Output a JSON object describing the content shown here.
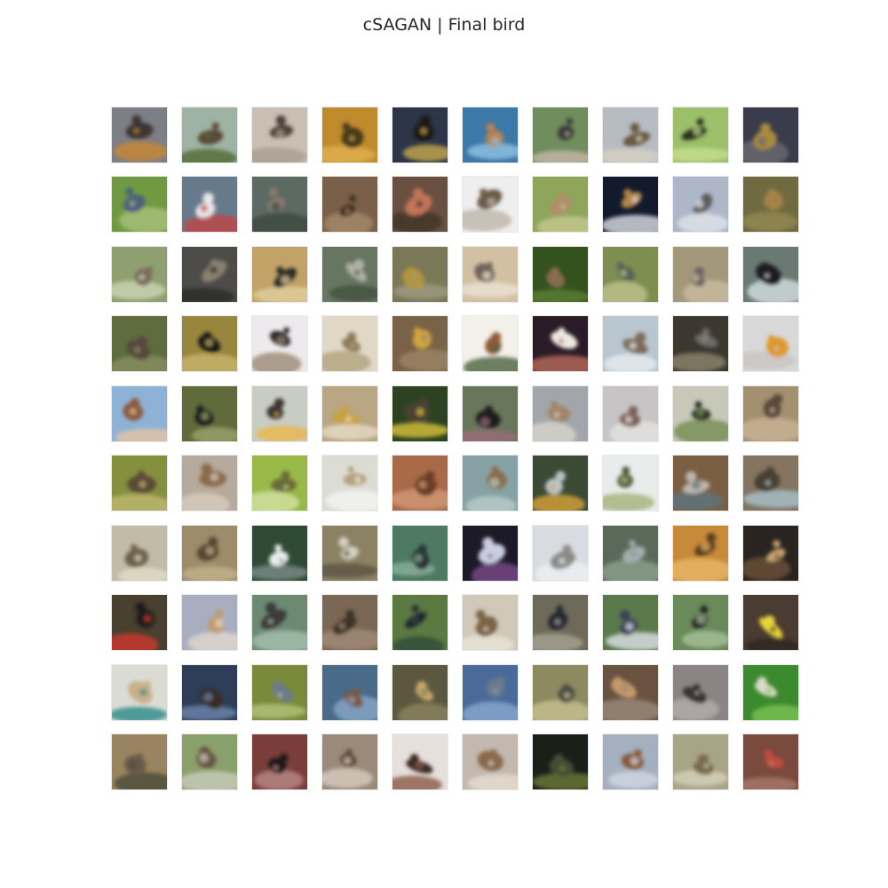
{
  "figure": {
    "title": "cSAGAN | Final bird"
  },
  "grid": {
    "rows": 10,
    "cols": 10,
    "tile_content": "bird-sample",
    "palettes": [
      {
        "bg": "#7d7f86",
        "fg": "#3c3430",
        "accent": "#c9872f"
      },
      {
        "bg": "#9fb3a4",
        "fg": "#5a4a38",
        "accent": "#4f6b35"
      },
      {
        "bg": "#c9bfb2",
        "fg": "#4e423a",
        "accent": "#a89d8e"
      },
      {
        "bg": "#c08b2c",
        "fg": "#4a3a1c",
        "accent": "#e0b250"
      },
      {
        "bg": "#2c3648",
        "fg": "#1a1816",
        "accent": "#c7a84a"
      },
      {
        "bg": "#3c78a8",
        "fg": "#b9824c",
        "accent": "#8fc3e2"
      },
      {
        "bg": "#6f8d5d",
        "fg": "#3a3a3a",
        "accent": "#c7b8a7"
      },
      {
        "bg": "#b7bcc3",
        "fg": "#6a5a40",
        "accent": "#d8d2c2"
      },
      {
        "bg": "#9cbf6a",
        "fg": "#2e3320",
        "accent": "#c5df8e"
      },
      {
        "bg": "#3a3c4c",
        "fg": "#a98a3c",
        "accent": "#6c6a70"
      },
      {
        "bg": "#6f9a42",
        "fg": "#4d6080",
        "accent": "#a7c07a"
      },
      {
        "bg": "#667a8c",
        "fg": "#e8e6e6",
        "accent": "#c24545"
      },
      {
        "bg": "#5b6a62",
        "fg": "#8a7a70",
        "accent": "#3b4840"
      },
      {
        "bg": "#7a6048",
        "fg": "#3d2f22",
        "accent": "#a58a6c"
      },
      {
        "bg": "#6a5040",
        "fg": "#c27458",
        "accent": "#3e3226"
      },
      {
        "bg": "#eeeeee",
        "fg": "#6c5a48",
        "accent": "#bdb5aa"
      },
      {
        "bg": "#8ea55a",
        "fg": "#b08f6a",
        "accent": "#c5c790"
      },
      {
        "bg": "#121a2c",
        "fg": "#b08446",
        "accent": "#dddfe6"
      },
      {
        "bg": "#adb7c8",
        "fg": "#5e5c5c",
        "accent": "#e0e4ea"
      },
      {
        "bg": "#6f6a40",
        "fg": "#a5824a",
        "accent": "#938a52"
      },
      {
        "bg": "#8ea070",
        "fg": "#7a6a5a",
        "accent": "#cbd6b4"
      },
      {
        "bg": "#4d4c48",
        "fg": "#8a8270",
        "accent": "#2c2a26"
      },
      {
        "bg": "#c2a266",
        "fg": "#2c2a26",
        "accent": "#e0cf9e"
      },
      {
        "bg": "#667660",
        "fg": "#b0b0a6",
        "accent": "#425240"
      },
      {
        "bg": "#7a7856",
        "fg": "#b3953c",
        "accent": "#9c9a80"
      },
      {
        "bg": "#d2c0a2",
        "fg": "#6e6258",
        "accent": "#ece4d6"
      },
      {
        "bg": "#33521e",
        "fg": "#8a6a52",
        "accent": "#5c7e32"
      },
      {
        "bg": "#7e8e50",
        "fg": "#5a6058",
        "accent": "#bec28e"
      },
      {
        "bg": "#a4987a",
        "fg": "#6a6462",
        "accent": "#c8bca0"
      },
      {
        "bg": "#6a7a72",
        "fg": "#1c1e22",
        "accent": "#d6e0e2"
      },
      {
        "bg": "#5e6c3e",
        "fg": "#56483c",
        "accent": "#8a8e62"
      },
      {
        "bg": "#98863e",
        "fg": "#121212",
        "accent": "#c8b46a"
      },
      {
        "bg": "#eceaec",
        "fg": "#2c2a2a",
        "accent": "#9c8a76"
      },
      {
        "bg": "#e2d8c8",
        "fg": "#8c7a54",
        "accent": "#b0a47c"
      },
      {
        "bg": "#7a6248",
        "fg": "#d2a63e",
        "accent": "#9c8466"
      },
      {
        "bg": "#f4f0ea",
        "fg": "#8e5a3a",
        "accent": "#4e6240"
      },
      {
        "bg": "#2a1c26",
        "fg": "#ece8e2",
        "accent": "#b86a5a"
      },
      {
        "bg": "#b8c6d0",
        "fg": "#7c6a5a",
        "accent": "#e6ecf0"
      },
      {
        "bg": "#3c3830",
        "fg": "#686a6a",
        "accent": "#8c846c"
      },
      {
        "bg": "#d8d8d8",
        "fg": "#e0962c",
        "accent": "#c8c4c0"
      },
      {
        "bg": "#8eb2d6",
        "fg": "#8c5a3a",
        "accent": "#e6c4a4"
      },
      {
        "bg": "#606a3a",
        "fg": "#1a1c20",
        "accent": "#9ea36a"
      },
      {
        "bg": "#c8ccc2",
        "fg": "#3c3430",
        "accent": "#e8b84a"
      },
      {
        "bg": "#b8a684",
        "fg": "#c9a23c",
        "accent": "#e8dcc6"
      },
      {
        "bg": "#2c4220",
        "fg": "#4a4232",
        "accent": "#d8c23c"
      },
      {
        "bg": "#68765a",
        "fg": "#1e1a1c",
        "accent": "#9a6c7a"
      },
      {
        "bg": "#a2a6aa",
        "fg": "#a08466",
        "accent": "#d8d4cc"
      },
      {
        "bg": "#c6c4c4",
        "fg": "#7a6454",
        "accent": "#e6e4e2"
      },
      {
        "bg": "#c8c8b8",
        "fg": "#2a2e2c",
        "accent": "#748c52"
      },
      {
        "bg": "#a49070",
        "fg": "#5a4a3a",
        "accent": "#c8b496"
      },
      {
        "bg": "#84903e",
        "fg": "#5c4a38",
        "accent": "#c0b870"
      },
      {
        "bg": "#b6aa9c",
        "fg": "#8a6a4a",
        "accent": "#d8ccc0"
      },
      {
        "bg": "#98b848",
        "fg": "#6a6a38",
        "accent": "#d2e2a4"
      },
      {
        "bg": "#dcdcd4",
        "fg": "#b4a07a",
        "accent": "#f4f4f2"
      },
      {
        "bg": "#a86a48",
        "fg": "#6a3e26",
        "accent": "#d29876"
      },
      {
        "bg": "#86a2a4",
        "fg": "#8a6a4a",
        "accent": "#b8ccca"
      },
      {
        "bg": "#3a4a34",
        "fg": "#bac4c6",
        "accent": "#d8a43a"
      },
      {
        "bg": "#e8ecea",
        "fg": "#545a3a",
        "accent": "#a8b27a"
      },
      {
        "bg": "#7a5e42",
        "fg": "#bcb6ae",
        "accent": "#5c7480"
      },
      {
        "bg": "#847460",
        "fg": "#4a4032",
        "accent": "#a8c2cc"
      },
      {
        "bg": "#c2bca6",
        "fg": "#6a6248",
        "accent": "#e2dcc8"
      },
      {
        "bg": "#9c8c6a",
        "fg": "#5a4430",
        "accent": "#c4b28c"
      },
      {
        "bg": "#2e4a34",
        "fg": "#e8ecee",
        "accent": "#7c8c8a"
      },
      {
        "bg": "#8a8262",
        "fg": "#d4d0c4",
        "accent": "#5c5444"
      },
      {
        "bg": "#4e7a62",
        "fg": "#2a3236",
        "accent": "#8ab09a"
      },
      {
        "bg": "#1c1a26",
        "fg": "#cacce0",
        "accent": "#7a4a8a"
      },
      {
        "bg": "#d8dce0",
        "fg": "#8a8a86",
        "accent": "#eef0f2"
      },
      {
        "bg": "#5a6a58",
        "fg": "#a6aeb4",
        "accent": "#8ca08c"
      },
      {
        "bg": "#c68a38",
        "fg": "#5e3c1e",
        "accent": "#e8b866"
      },
      {
        "bg": "#2a2420",
        "fg": "#c8a070",
        "accent": "#6a5238"
      },
      {
        "bg": "#4a4030",
        "fg": "#1c1c1c",
        "accent": "#cc3a2a"
      },
      {
        "bg": "#a8aec0",
        "fg": "#c49a6a",
        "accent": "#e0d8d0"
      },
      {
        "bg": "#6c8a72",
        "fg": "#3a3a3a",
        "accent": "#a8c0ae"
      },
      {
        "bg": "#7a6854",
        "fg": "#3c3026",
        "accent": "#a08c76"
      },
      {
        "bg": "#5a7a42",
        "fg": "#222632",
        "accent": "#2e4a3a"
      },
      {
        "bg": "#d0c8b8",
        "fg": "#7c6444",
        "accent": "#eae4da"
      },
      {
        "bg": "#6e6a5a",
        "fg": "#262632",
        "accent": "#a6a292"
      },
      {
        "bg": "#5a7a4c",
        "fg": "#3c4258",
        "accent": "#dce2e6"
      },
      {
        "bg": "#6a8a5a",
        "fg": "#26262a",
        "accent": "#a8c09a"
      },
      {
        "bg": "#4a3c32",
        "fg": "#e6d43a",
        "accent": "#2a2620"
      },
      {
        "bg": "#dadcd4",
        "fg": "#c8b08a",
        "accent": "#2c8a8a"
      },
      {
        "bg": "#2e3e58",
        "fg": "#3a2a22",
        "accent": "#6a86aa"
      },
      {
        "bg": "#7a8a3a",
        "fg": "#6c7a8c",
        "accent": "#b6c27a"
      },
      {
        "bg": "#4a6a8a",
        "fg": "#7a5a42",
        "accent": "#8aa8c8"
      },
      {
        "bg": "#5c5840",
        "fg": "#c4a86a",
        "accent": "#8c8460"
      },
      {
        "bg": "#4a6a9a",
        "fg": "#6c7a8a",
        "accent": "#8aa8d0"
      },
      {
        "bg": "#8c8a5e",
        "fg": "#4a4a42",
        "accent": "#c6c090"
      },
      {
        "bg": "#6a5240",
        "fg": "#c49a6a",
        "accent": "#9a8a7a"
      },
      {
        "bg": "#8a8484",
        "fg": "#3a3230",
        "accent": "#b4acaa"
      },
      {
        "bg": "#3c8a2e",
        "fg": "#dcd8cc",
        "accent": "#7ac254"
      },
      {
        "bg": "#9a8460",
        "fg": "#6a5a4a",
        "accent": "#4a4a3a"
      },
      {
        "bg": "#8aa06a",
        "fg": "#6a5444",
        "accent": "#c8ccbe"
      },
      {
        "bg": "#7a3e3a",
        "fg": "#1c1214",
        "accent": "#b88a8a"
      },
      {
        "bg": "#9a8a7a",
        "fg": "#5a4836",
        "accent": "#d8ccc0"
      },
      {
        "bg": "#e6e0dc",
        "fg": "#3a2c26",
        "accent": "#8a5a48"
      },
      {
        "bg": "#c2b8ae",
        "fg": "#8a6a4c",
        "accent": "#e6dcd0"
      },
      {
        "bg": "#1a2018",
        "fg": "#4a4c36",
        "accent": "#6a7a3a"
      },
      {
        "bg": "#a4b0c0",
        "fg": "#8a5a3a",
        "accent": "#d0d8e2"
      },
      {
        "bg": "#a8a486",
        "fg": "#7a6a4e",
        "accent": "#d6d2bc"
      },
      {
        "bg": "#7a4a3e",
        "fg": "#c24a3a",
        "accent": "#a8786a"
      }
    ]
  }
}
